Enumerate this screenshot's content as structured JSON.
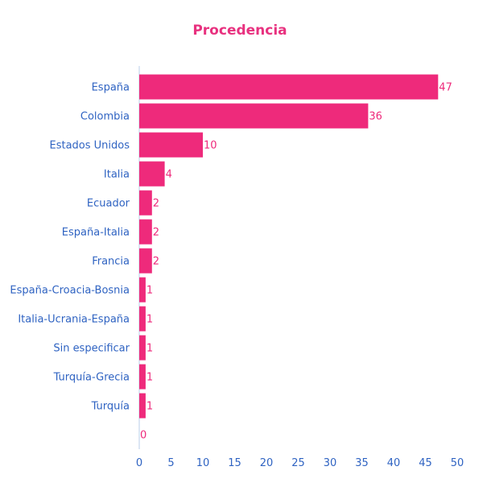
{
  "colors": {
    "bar": "#ee2a7b",
    "title": "#e8317f",
    "axis_text": "#2f63c2",
    "value_text": "#ee2a7b",
    "axis_line": "#b8cde9"
  },
  "chart_data": {
    "type": "bar",
    "orientation": "horizontal",
    "title": "Procedencia",
    "xlabel": "",
    "ylabel": "",
    "categories": [
      "España",
      "Colombia",
      "Estados Unidos",
      "Italia",
      "Ecuador",
      "España-Italia",
      "Francia",
      "España-Croacia-Bosnia",
      "Italia-Ucrania-España",
      "Sin especificar",
      "Turquía-Grecia",
      "Turquía",
      ""
    ],
    "values": [
      47,
      36,
      10,
      4,
      2,
      2,
      2,
      1,
      1,
      1,
      1,
      1,
      0
    ],
    "xlim": [
      0,
      50
    ],
    "xticks": [
      0,
      5,
      10,
      15,
      20,
      25,
      30,
      35,
      40,
      45,
      50
    ],
    "grid": false,
    "legend": "none"
  }
}
